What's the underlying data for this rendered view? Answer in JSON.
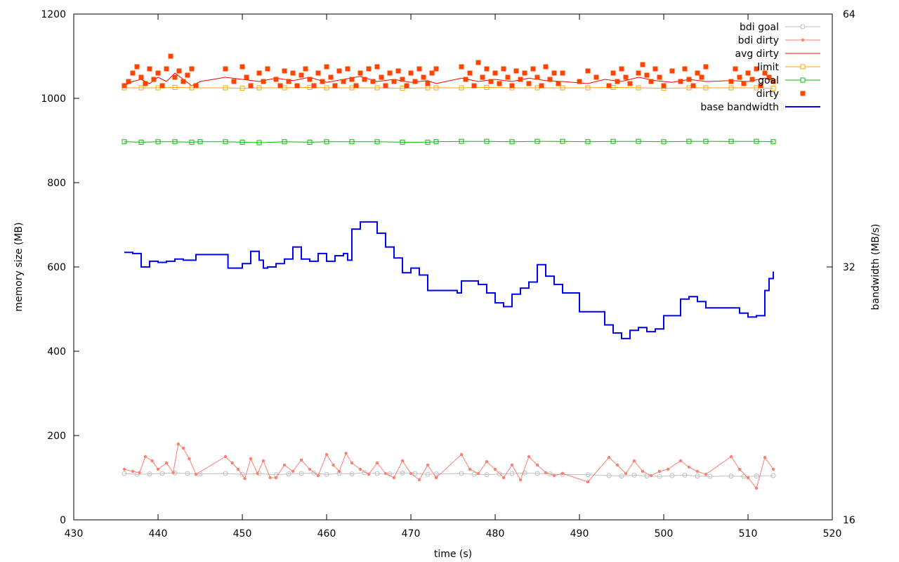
{
  "chart_data": {
    "type": "line",
    "title": "",
    "xlabel": "time (s)",
    "ylabel": "memory size (MB)",
    "y2label": "bandwidth (MB/s)",
    "xlim": [
      430,
      520
    ],
    "ylim": [
      0,
      1200
    ],
    "y2lim": [
      16,
      64
    ],
    "y2scale": "log2",
    "xticks": [
      "430",
      "440",
      "450",
      "460",
      "470",
      "480",
      "490",
      "500",
      "510",
      "520"
    ],
    "yticks": [
      "0",
      "200",
      "400",
      "600",
      "800",
      "1000",
      "1200"
    ],
    "y2ticks": [
      "16",
      "32",
      "64"
    ],
    "grid": false,
    "legend_position": "top-right",
    "series": [
      {
        "name": "bdi goal",
        "color": "#bebebe",
        "style": "line-circle",
        "x": [
          436,
          437.5,
          439,
          440.5,
          442,
          443.5,
          445,
          448,
          450,
          452,
          454,
          455.5,
          457,
          458.5,
          460,
          461.5,
          463,
          464.5,
          466,
          467.5,
          469,
          470.5,
          472,
          473,
          476,
          477.5,
          479,
          480.5,
          482,
          483.5,
          485,
          486.5,
          488,
          491,
          493.5,
          495,
          496.5,
          498,
          499.5,
          501,
          502.5,
          504,
          505.5,
          508,
          509.5,
          511,
          513
        ],
        "y": [
          110,
          108,
          109,
          110,
          111,
          110,
          109,
          110,
          108,
          110,
          107,
          109,
          110,
          111,
          108,
          110,
          109,
          112,
          110,
          109,
          111,
          110,
          108,
          109,
          110,
          108,
          107,
          109,
          110,
          111,
          110,
          109,
          108,
          107,
          105,
          104,
          106,
          104,
          103,
          105,
          106,
          104,
          103,
          104,
          103,
          104,
          105
        ]
      },
      {
        "name": "bdi dirty",
        "color": "#fa8072",
        "style": "line-point",
        "x": [
          436,
          437,
          437.8,
          438.5,
          439.3,
          440,
          441,
          441.8,
          442.4,
          443,
          443.7,
          444.5,
          448,
          448.8,
          449.5,
          450.3,
          451,
          451.8,
          452.5,
          453.3,
          454,
          455,
          456,
          457,
          458,
          459,
          460,
          460.8,
          461.5,
          462.3,
          463,
          464,
          465,
          466,
          467,
          468,
          469,
          470,
          471,
          472,
          473,
          476,
          477,
          478,
          479,
          480,
          481,
          482,
          483,
          484,
          485,
          486,
          487,
          488,
          491,
          493.5,
          494.5,
          495.5,
          496.5,
          497.5,
          498.5,
          499.5,
          500.5,
          502,
          503,
          504,
          505,
          508,
          509,
          510,
          511,
          512,
          513
        ],
        "y": [
          120,
          115,
          112,
          150,
          140,
          120,
          135,
          112,
          180,
          170,
          145,
          108,
          150,
          135,
          120,
          98,
          145,
          110,
          140,
          100,
          100,
          130,
          115,
          142,
          120,
          105,
          155,
          130,
          115,
          158,
          135,
          120,
          108,
          135,
          110,
          100,
          140,
          110,
          95,
          130,
          100,
          155,
          120,
          110,
          138,
          120,
          100,
          130,
          95,
          150,
          130,
          112,
          105,
          110,
          90,
          148,
          130,
          110,
          140,
          115,
          105,
          115,
          120,
          140,
          125,
          115,
          108,
          150,
          120,
          100,
          75,
          148,
          120
        ]
      },
      {
        "name": "avg dirty",
        "color": "#ff0000",
        "style": "line",
        "x": [
          436,
          437,
          438,
          439,
          440,
          441,
          442,
          443,
          444,
          445,
          448,
          450,
          452,
          454,
          456,
          458,
          460,
          462,
          464,
          466,
          468,
          470,
          472,
          473,
          476,
          478,
          480,
          482,
          484,
          486,
          488,
          491,
          493,
          495,
          497,
          499,
          501,
          503,
          505,
          508,
          510,
          512,
          513
        ],
        "y": [
          1030,
          1040,
          1045,
          1035,
          1050,
          1040,
          1060,
          1045,
          1030,
          1040,
          1050,
          1045,
          1040,
          1048,
          1042,
          1050,
          1038,
          1045,
          1052,
          1040,
          1045,
          1038,
          1042,
          1035,
          1048,
          1040,
          1045,
          1040,
          1048,
          1042,
          1040,
          1035,
          1045,
          1040,
          1050,
          1042,
          1038,
          1045,
          1040,
          1042,
          1040,
          1048,
          1042
        ]
      },
      {
        "name": "limit",
        "color": "#ffa500",
        "style": "line-square",
        "x": [
          436,
          438,
          440,
          442,
          444,
          448,
          450,
          452,
          455,
          458,
          460,
          463,
          466,
          469,
          472,
          473,
          476,
          479,
          482,
          485,
          488,
          491,
          494,
          497,
          500,
          503,
          505,
          508,
          511,
          513
        ],
        "y": [
          1025,
          1025,
          1025,
          1026,
          1025,
          1025,
          1024,
          1025,
          1025,
          1026,
          1025,
          1025,
          1025,
          1024,
          1025,
          1025,
          1025,
          1026,
          1025,
          1025,
          1025,
          1025,
          1026,
          1025,
          1024,
          1025,
          1025,
          1025,
          1025,
          1024
        ]
      },
      {
        "name": "goal",
        "color": "#00c000",
        "style": "line-square",
        "x": [
          436,
          438,
          440,
          442,
          444,
          445,
          448,
          450,
          452,
          455,
          458,
          460,
          463,
          466,
          469,
          472,
          473,
          476,
          479,
          482,
          485,
          488,
          491,
          494,
          497,
          500,
          503,
          505,
          508,
          511,
          513
        ],
        "y": [
          897,
          896,
          897,
          897,
          896,
          897,
          897,
          896,
          895,
          897,
          896,
          897,
          897,
          897,
          896,
          896,
          897,
          898,
          898,
          897,
          898,
          898,
          897,
          898,
          898,
          897,
          898,
          898,
          898,
          898,
          897
        ]
      },
      {
        "name": "dirty",
        "color": "#ff4500",
        "style": "square-points",
        "x": [
          436,
          436.5,
          437,
          437.5,
          438,
          438.5,
          439,
          439.5,
          440,
          440.5,
          441,
          441.5,
          442,
          442.5,
          443,
          443.5,
          444,
          444.5,
          448,
          449,
          450,
          450.5,
          451,
          452,
          452.5,
          453,
          454,
          454.5,
          455,
          455.5,
          456,
          456.5,
          457,
          457.5,
          458,
          458.5,
          459,
          459.5,
          460,
          460.5,
          461,
          461.5,
          462,
          462.5,
          463,
          463.5,
          464,
          464.5,
          465,
          465.5,
          466,
          466.5,
          467,
          467.5,
          468,
          468.5,
          469,
          469.5,
          470,
          470.5,
          471,
          471.5,
          472,
          472.5,
          473,
          476,
          476.5,
          477,
          477.5,
          478,
          478.5,
          479,
          479.5,
          480,
          480.5,
          481,
          481.5,
          482,
          482.5,
          483,
          483.5,
          484,
          484.5,
          485,
          485.5,
          486,
          486.5,
          487,
          487.5,
          488,
          490,
          491,
          492,
          493.5,
          494,
          494.5,
          495,
          495.5,
          496,
          497,
          497.5,
          498,
          498.5,
          499,
          499.5,
          500,
          501,
          502,
          502.5,
          503,
          503.5,
          504,
          504.5,
          505,
          508,
          508.5,
          509,
          509.5,
          510,
          510.5,
          511,
          511.5,
          512,
          512.5,
          513
        ],
        "y": [
          1030,
          1040,
          1060,
          1075,
          1050,
          1035,
          1070,
          1045,
          1060,
          1030,
          1070,
          1100,
          1050,
          1065,
          1040,
          1055,
          1070,
          1030,
          1070,
          1040,
          1075,
          1050,
          1030,
          1060,
          1040,
          1070,
          1045,
          1030,
          1065,
          1040,
          1060,
          1030,
          1055,
          1070,
          1045,
          1030,
          1060,
          1040,
          1075,
          1050,
          1030,
          1065,
          1040,
          1070,
          1045,
          1030,
          1060,
          1045,
          1070,
          1040,
          1075,
          1050,
          1030,
          1060,
          1040,
          1065,
          1045,
          1030,
          1060,
          1040,
          1070,
          1050,
          1035,
          1060,
          1070,
          1075,
          1045,
          1060,
          1030,
          1085,
          1050,
          1070,
          1040,
          1060,
          1035,
          1070,
          1050,
          1030,
          1065,
          1045,
          1060,
          1035,
          1070,
          1050,
          1030,
          1075,
          1045,
          1060,
          1035,
          1060,
          1040,
          1065,
          1050,
          1030,
          1060,
          1040,
          1070,
          1050,
          1035,
          1060,
          1080,
          1055,
          1040,
          1070,
          1050,
          1030,
          1065,
          1040,
          1070,
          1045,
          1030,
          1060,
          1050,
          1075,
          1040,
          1070,
          1050,
          1035,
          1060,
          1045,
          1070,
          1030,
          1060,
          1050,
          1040
        ]
      },
      {
        "name": "base bandwidth",
        "color": "#0000ff",
        "style": "step",
        "axis": "y2",
        "x": [
          436,
          437,
          438,
          439,
          440,
          441,
          442,
          443,
          444.5,
          447.5,
          448.3,
          449,
          450,
          451,
          452,
          452.5,
          453,
          454,
          455,
          456,
          457,
          458,
          459,
          460,
          461,
          462,
          462.5,
          463,
          464,
          465,
          466,
          467,
          468,
          469,
          470,
          471,
          472,
          475.5,
          476,
          477,
          478,
          479,
          480,
          481,
          482,
          483,
          484,
          485,
          486,
          487,
          488,
          490,
          491.5,
          493,
          494,
          495,
          496,
          497,
          498,
          499,
          500,
          502,
          503,
          504,
          505,
          509,
          510,
          511,
          512,
          512.5,
          513
        ],
        "y": [
          33.3,
          33.2,
          32.0,
          32.5,
          32.4,
          32.5,
          32.7,
          32.6,
          33.1,
          33.1,
          31.9,
          31.9,
          32.3,
          33.4,
          32.6,
          31.9,
          32.0,
          32.3,
          32.7,
          33.8,
          32.7,
          32.5,
          33.2,
          32.5,
          33.0,
          33.2,
          32.6,
          35.5,
          36.2,
          36.2,
          35.1,
          33.8,
          32.8,
          31.5,
          31.9,
          31.3,
          30.0,
          29.8,
          30.8,
          30.8,
          30.5,
          29.8,
          29.0,
          28.7,
          29.7,
          30.2,
          30.7,
          32.2,
          31.2,
          30.5,
          29.8,
          28.3,
          28.3,
          27.3,
          26.7,
          26.3,
          26.9,
          27.1,
          26.8,
          27.0,
          28.0,
          29.3,
          29.5,
          29.1,
          28.6,
          28.2,
          27.9,
          28.0,
          30.0,
          31.0,
          31.6
        ]
      }
    ]
  }
}
